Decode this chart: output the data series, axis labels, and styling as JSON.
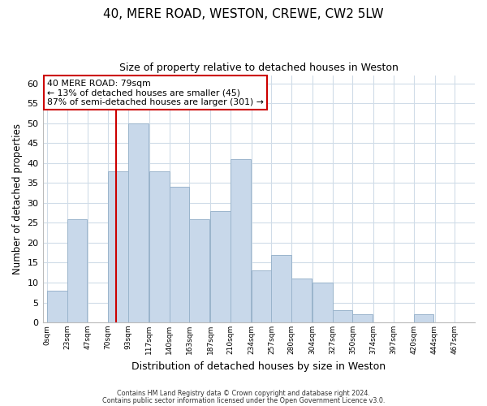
{
  "title": "40, MERE ROAD, WESTON, CREWE, CW2 5LW",
  "subtitle": "Size of property relative to detached houses in Weston",
  "xlabel": "Distribution of detached houses by size in Weston",
  "ylabel": "Number of detached properties",
  "bar_color": "#c8d8ea",
  "bar_edge_color": "#9ab4cc",
  "grid_color": "#d0dce8",
  "vline_x": 79,
  "vline_color": "#cc0000",
  "annotation_title": "40 MERE ROAD: 79sqm",
  "annotation_line1": "← 13% of detached houses are smaller (45)",
  "annotation_line2": "87% of semi-detached houses are larger (301) →",
  "annotation_box_facecolor": "#ffffff",
  "annotation_box_edgecolor": "#cc0000",
  "bins_left": [
    0,
    23,
    47,
    70,
    93,
    117,
    140,
    163,
    187,
    210,
    234,
    257,
    280,
    304,
    327,
    350,
    374,
    397,
    420,
    444
  ],
  "bin_width": 23,
  "bin_heights": [
    8,
    26,
    0,
    38,
    50,
    38,
    34,
    26,
    28,
    41,
    13,
    17,
    11,
    10,
    3,
    2,
    0,
    0,
    2,
    0
  ],
  "xtick_labels": [
    "0sqm",
    "23sqm",
    "47sqm",
    "70sqm",
    "93sqm",
    "117sqm",
    "140sqm",
    "163sqm",
    "187sqm",
    "210sqm",
    "234sqm",
    "257sqm",
    "280sqm",
    "304sqm",
    "327sqm",
    "350sqm",
    "374sqm",
    "397sqm",
    "420sqm",
    "444sqm",
    "467sqm"
  ],
  "xtick_positions": [
    0,
    23,
    47,
    70,
    93,
    117,
    140,
    163,
    187,
    210,
    234,
    257,
    280,
    304,
    327,
    350,
    374,
    397,
    420,
    444,
    467
  ],
  "ytick_positions": [
    0,
    5,
    10,
    15,
    20,
    25,
    30,
    35,
    40,
    45,
    50,
    55,
    60
  ],
  "ylim": [
    0,
    62
  ],
  "xlim": [
    -5,
    490
  ],
  "footer1": "Contains HM Land Registry data © Crown copyright and database right 2024.",
  "footer2": "Contains public sector information licensed under the Open Government Licence v3.0."
}
